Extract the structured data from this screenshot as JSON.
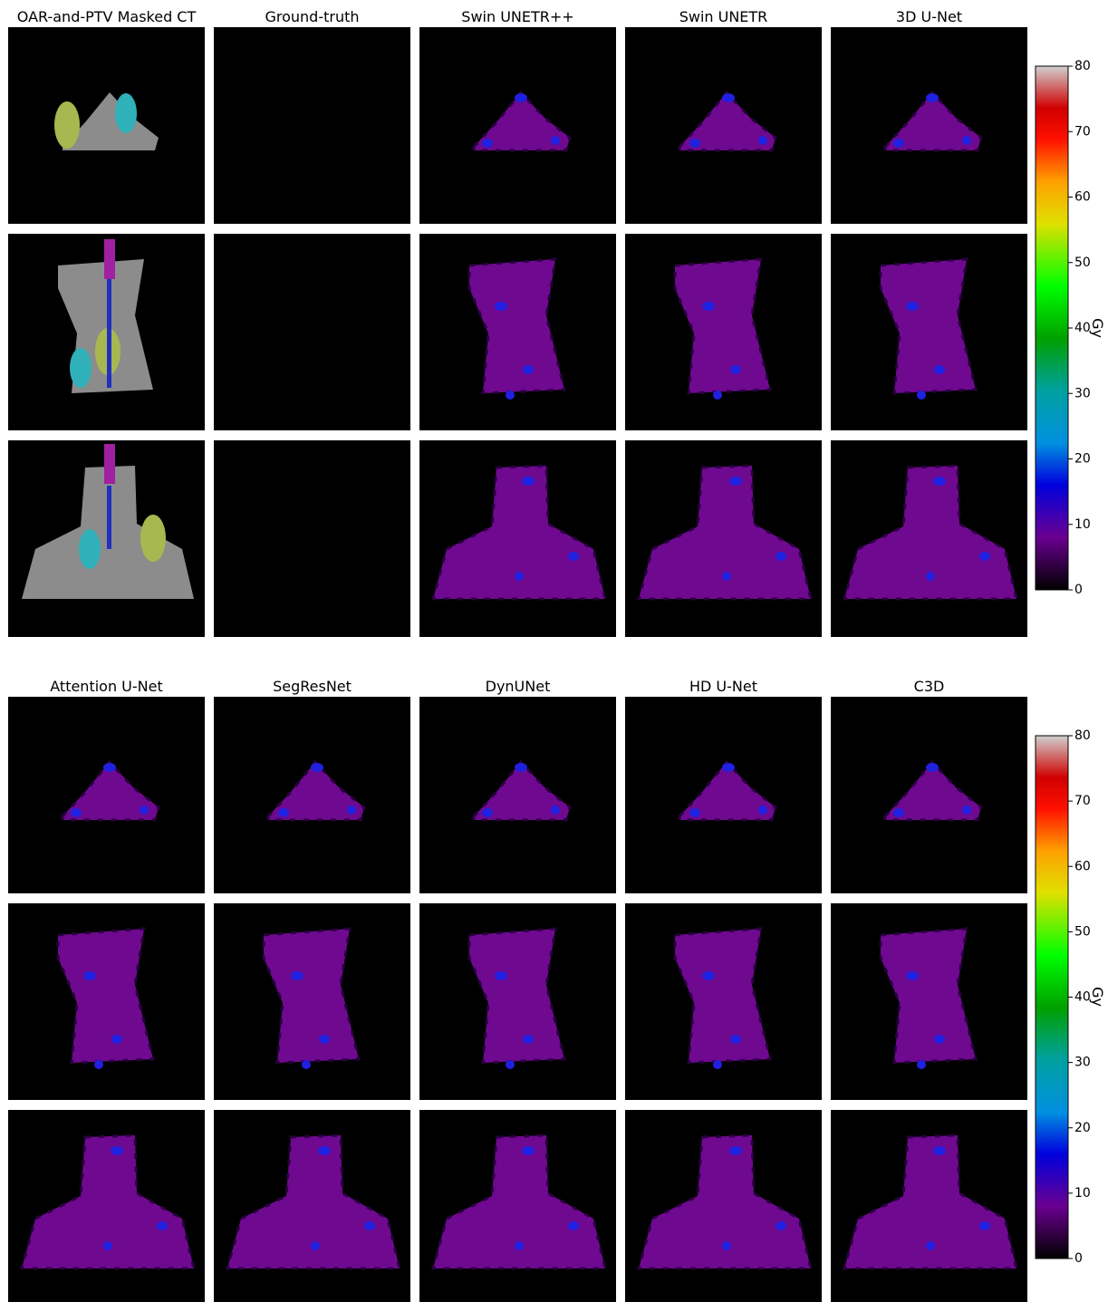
{
  "panels": [
    {
      "columns": [
        "OAR-and-PTV Masked CT",
        "Ground-truth",
        "Swin UNETR++",
        "Swin UNETR",
        "3D U-Net"
      ],
      "colorbar": {
        "label": "Gy",
        "ticks": [
          0,
          10,
          20,
          30,
          40,
          50,
          60,
          70,
          80
        ]
      }
    },
    {
      "columns": [
        "Attention U-Net",
        "SegResNet",
        "DynUNet",
        "HD U-Net",
        "C3D"
      ],
      "colorbar": {
        "label": "Gy",
        "ticks": [
          0,
          10,
          20,
          30,
          40,
          50,
          60,
          70,
          80
        ]
      }
    }
  ]
}
